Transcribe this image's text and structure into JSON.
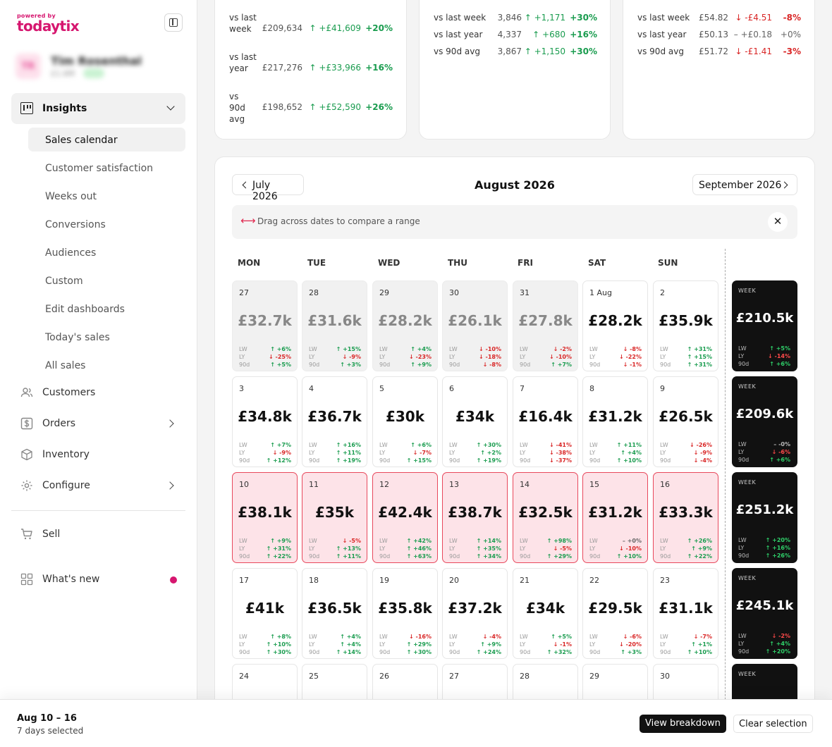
{
  "brand": {
    "tagline": "powered by",
    "name": "todaytix",
    "color": "#d6166f"
  },
  "profile": {
    "initials": "TR",
    "name": "Tim Rosenthal",
    "subtitle": "£1.6M"
  },
  "sidebar": {
    "insights": {
      "label": "Insights",
      "icon": "insights-icon"
    },
    "sub_items": [
      {
        "label": "Sales calendar",
        "active": true
      },
      {
        "label": "Customer satisfaction"
      },
      {
        "label": "Weeks out"
      },
      {
        "label": "Conversions"
      },
      {
        "label": "Audiences"
      },
      {
        "label": "Custom"
      },
      {
        "label": "Edit dashboards"
      },
      {
        "label": "Today's sales"
      },
      {
        "label": "All sales"
      }
    ],
    "main_items": [
      {
        "label": "Customers",
        "icon": "users-icon"
      },
      {
        "label": "Orders",
        "icon": "dollar-icon"
      },
      {
        "label": "Inventory",
        "icon": "box-icon"
      },
      {
        "label": "Configure",
        "icon": "gear-icon"
      }
    ],
    "sell": {
      "label": "Sell",
      "icon": "cart-icon"
    },
    "whats_new": {
      "label": "What's new",
      "icon": "grid-icon"
    }
  },
  "stat_cards": [
    {
      "rows": [
        {
          "k": "vs last week",
          "v": "£209,634",
          "d": "↑ +£41,609",
          "p": "+20%",
          "dir": "up"
        },
        {
          "k": "vs last year",
          "v": "£217,276",
          "d": "↑ +£33,966",
          "p": "+16%",
          "dir": "up"
        },
        {
          "k": "vs 90d avg",
          "v": "£198,652",
          "d": "↑ +£52,590",
          "p": "+26%",
          "dir": "up"
        }
      ]
    },
    {
      "rows": [
        {
          "k": "vs last week",
          "v": "3,846",
          "d": "↑ +1,171",
          "p": "+30%",
          "dir": "up"
        },
        {
          "k": "vs last year",
          "v": "4,337",
          "d": "↑ +680",
          "p": "+16%",
          "dir": "up"
        },
        {
          "k": "vs 90d avg",
          "v": "3,867",
          "d": "↑ +1,150",
          "p": "+30%",
          "dir": "up"
        }
      ]
    },
    {
      "rows": [
        {
          "k": "vs last week",
          "v": "£54.82",
          "d": "↓ -£4.51",
          "p": "-8%",
          "dir": "down"
        },
        {
          "k": "vs last year",
          "v": "£50.13",
          "d": "– +£0.18",
          "p": "+0%",
          "dir": "flat"
        },
        {
          "k": "vs 90d avg",
          "v": "£51.72",
          "d": "↓ -£1.41",
          "p": "-3%",
          "dir": "down"
        }
      ]
    }
  ],
  "calendar": {
    "prev_month": "July 2026",
    "current_month": "August 2026",
    "next_month": "September 2026",
    "hint": "Drag across dates to compare a range",
    "weekdays": [
      "MON",
      "TUE",
      "WED",
      "THU",
      "FRI",
      "SAT",
      "SUN"
    ],
    "metric_labels": [
      "LW",
      "LY",
      "90d"
    ],
    "week_label": "WEEK",
    "weeks": [
      {
        "days": [
          {
            "date": "27",
            "amount": "£32.7k",
            "state": "prev",
            "m": [
              "+6%",
              "-25%",
              "+5%"
            ]
          },
          {
            "date": "28",
            "amount": "£31.6k",
            "state": "prev",
            "m": [
              "+15%",
              "-9%",
              "+3%"
            ]
          },
          {
            "date": "29",
            "amount": "£28.2k",
            "state": "prev",
            "m": [
              "+4%",
              "-23%",
              "+9%"
            ]
          },
          {
            "date": "30",
            "amount": "£26.1k",
            "state": "prev",
            "m": [
              "-10%",
              "-18%",
              "-8%"
            ]
          },
          {
            "date": "31",
            "amount": "£27.8k",
            "state": "prev",
            "m": [
              "-2%",
              "-10%",
              "+7%"
            ]
          },
          {
            "date": "1 Aug",
            "amount": "£28.2k",
            "state": "",
            "m": [
              "-8%",
              "-22%",
              "-1%"
            ]
          },
          {
            "date": "2",
            "amount": "£35.9k",
            "state": "",
            "m": [
              "+31%",
              "+15%",
              "+31%"
            ]
          }
        ],
        "total": {
          "amount": "£210.5k",
          "m": [
            "+5%",
            "-14%",
            "+6%"
          ]
        }
      },
      {
        "days": [
          {
            "date": "3",
            "amount": "£34.8k",
            "state": "",
            "m": [
              "+7%",
              "-9%",
              "+12%"
            ]
          },
          {
            "date": "4",
            "amount": "£36.7k",
            "state": "",
            "m": [
              "+16%",
              "+11%",
              "+19%"
            ]
          },
          {
            "date": "5",
            "amount": "£30k",
            "state": "",
            "m": [
              "+6%",
              "-7%",
              "+15%"
            ]
          },
          {
            "date": "6",
            "amount": "£34k",
            "state": "",
            "m": [
              "+30%",
              "+2%",
              "+19%"
            ]
          },
          {
            "date": "7",
            "amount": "£16.4k",
            "state": "",
            "m": [
              "-41%",
              "-38%",
              "-37%"
            ]
          },
          {
            "date": "8",
            "amount": "£31.2k",
            "state": "",
            "m": [
              "+11%",
              "+4%",
              "+10%"
            ]
          },
          {
            "date": "9",
            "amount": "£26.5k",
            "state": "",
            "m": [
              "-26%",
              "-9%",
              "-4%"
            ]
          }
        ],
        "total": {
          "amount": "£209.6k",
          "m": [
            "-0%",
            "-6%",
            "+6%"
          ]
        }
      },
      {
        "days": [
          {
            "date": "10",
            "amount": "£38.1k",
            "state": "sel",
            "m": [
              "+9%",
              "+31%",
              "+22%"
            ]
          },
          {
            "date": "11",
            "amount": "£35k",
            "state": "sel",
            "m": [
              "-5%",
              "+13%",
              "+11%"
            ]
          },
          {
            "date": "12",
            "amount": "£42.4k",
            "state": "sel",
            "m": [
              "+42%",
              "+46%",
              "+63%"
            ]
          },
          {
            "date": "13",
            "amount": "£38.7k",
            "state": "sel",
            "m": [
              "+14%",
              "+35%",
              "+34%"
            ]
          },
          {
            "date": "14",
            "amount": "£32.5k",
            "state": "sel",
            "m": [
              "+98%",
              "-5%",
              "+29%"
            ]
          },
          {
            "date": "15",
            "amount": "£31.2k",
            "state": "sel",
            "m": [
              "+0%",
              "-10%",
              "+10%"
            ]
          },
          {
            "date": "16",
            "amount": "£33.3k",
            "state": "sel",
            "m": [
              "+26%",
              "+9%",
              "+22%"
            ]
          }
        ],
        "total": {
          "amount": "£251.2k",
          "m": [
            "+20%",
            "+16%",
            "+26%"
          ]
        }
      },
      {
        "days": [
          {
            "date": "17",
            "amount": "£41k",
            "state": "",
            "m": [
              "+8%",
              "+10%",
              "+30%"
            ]
          },
          {
            "date": "18",
            "amount": "£36.5k",
            "state": "",
            "m": [
              "+4%",
              "+4%",
              "+14%"
            ]
          },
          {
            "date": "19",
            "amount": "£35.8k",
            "state": "",
            "m": [
              "-16%",
              "+29%",
              "+30%"
            ]
          },
          {
            "date": "20",
            "amount": "£37.2k",
            "state": "",
            "m": [
              "-4%",
              "+9%",
              "+24%"
            ]
          },
          {
            "date": "21",
            "amount": "£34k",
            "state": "",
            "m": [
              "+5%",
              "-1%",
              "+32%"
            ]
          },
          {
            "date": "22",
            "amount": "£29.5k",
            "state": "",
            "m": [
              "-6%",
              "-20%",
              "+3%"
            ]
          },
          {
            "date": "23",
            "amount": "£31.1k",
            "state": "",
            "m": [
              "-7%",
              "+1%",
              "+10%"
            ]
          }
        ],
        "total": {
          "amount": "£245.1k",
          "m": [
            "-2%",
            "+4%",
            "+20%"
          ]
        }
      },
      {
        "days": [
          {
            "date": "24",
            "amount": "",
            "state": "",
            "m": []
          },
          {
            "date": "25",
            "amount": "",
            "state": "",
            "m": []
          },
          {
            "date": "26",
            "amount": "",
            "state": "",
            "m": []
          },
          {
            "date": "27",
            "amount": "",
            "state": "",
            "m": []
          },
          {
            "date": "28",
            "amount": "",
            "state": "",
            "m": []
          },
          {
            "date": "29",
            "amount": "",
            "state": "",
            "m": []
          },
          {
            "date": "30",
            "amount": "",
            "state": "",
            "m": []
          }
        ],
        "total": {
          "amount": "",
          "m": []
        }
      }
    ]
  },
  "selection": {
    "range": "Aug 10 – 16",
    "count": "7 days selected",
    "view_breakdown": "View breakdown",
    "clear_selection": "Clear selection"
  },
  "colors": {
    "up": "#1a9c4f",
    "down": "#d92626",
    "selected_bg": "#fde3e8",
    "selected_border": "#e8485c"
  }
}
